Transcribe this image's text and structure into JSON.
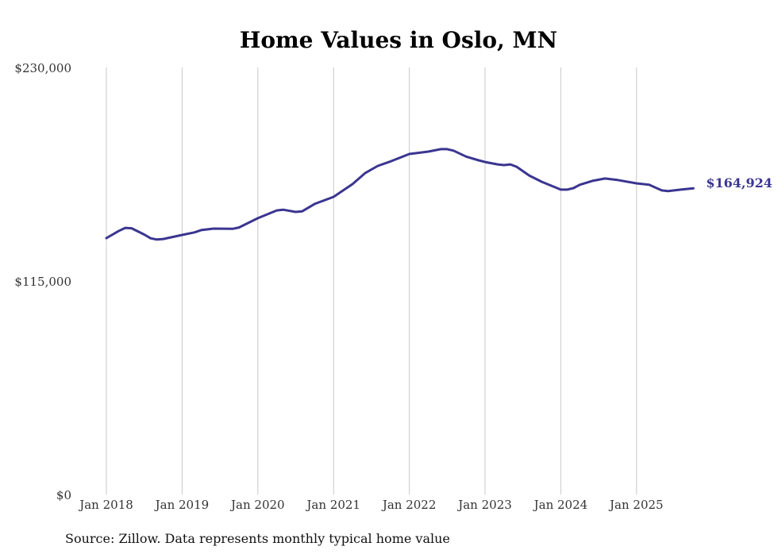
{
  "chart_data": {
    "type": "line",
    "title": "Home Values in Oslo, MN",
    "source": "Source: Zillow. Data represents monthly typical home value",
    "xlabel": "",
    "ylabel": "",
    "ylim": [
      0,
      230000
    ],
    "y_ticks": [
      0,
      115000,
      230000
    ],
    "y_tick_labels": [
      "$0",
      "$115,000",
      "$230,000"
    ],
    "x_ticks": [
      "2018-01",
      "2019-01",
      "2020-01",
      "2021-01",
      "2022-01",
      "2023-01",
      "2024-01",
      "2025-01"
    ],
    "x_tick_labels": [
      "Jan 2018",
      "Jan 2019",
      "Jan 2020",
      "Jan 2021",
      "Jan 2022",
      "Jan 2023",
      "Jan 2024",
      "Jan 2025"
    ],
    "grid": "vertical",
    "end_label": "$164,924",
    "colors": {
      "line": "#3b3590",
      "grid": "#c8c8c8",
      "text": "#333333"
    },
    "series": [
      {
        "name": "Typical home value",
        "points": [
          [
            "2018-01",
            138100
          ],
          [
            "2018-03",
            142000
          ],
          [
            "2018-04",
            143600
          ],
          [
            "2018-05",
            143400
          ],
          [
            "2018-07",
            140000
          ],
          [
            "2018-08",
            138000
          ],
          [
            "2018-09",
            137300
          ],
          [
            "2018-10",
            137600
          ],
          [
            "2019-01",
            139800
          ],
          [
            "2019-03",
            141200
          ],
          [
            "2019-04",
            142400
          ],
          [
            "2019-06",
            143200
          ],
          [
            "2019-09",
            143100
          ],
          [
            "2019-10",
            143800
          ],
          [
            "2020-01",
            148800
          ],
          [
            "2020-04",
            153000
          ],
          [
            "2020-05",
            153400
          ],
          [
            "2020-07",
            152200
          ],
          [
            "2020-08",
            152500
          ],
          [
            "2020-10",
            156500
          ],
          [
            "2021-01",
            160300
          ],
          [
            "2021-04",
            167200
          ],
          [
            "2021-06",
            173100
          ],
          [
            "2021-08",
            177000
          ],
          [
            "2021-10",
            179400
          ],
          [
            "2022-01",
            183400
          ],
          [
            "2022-04",
            184700
          ],
          [
            "2022-06",
            186000
          ],
          [
            "2022-07",
            186000
          ],
          [
            "2022-08",
            185200
          ],
          [
            "2022-10",
            182000
          ],
          [
            "2022-12",
            180000
          ],
          [
            "2023-01",
            179100
          ],
          [
            "2023-03",
            177800
          ],
          [
            "2023-04",
            177400
          ],
          [
            "2023-05",
            177800
          ],
          [
            "2023-06",
            176500
          ],
          [
            "2023-08",
            171800
          ],
          [
            "2023-10",
            168400
          ],
          [
            "2024-01",
            164200
          ],
          [
            "2024-02",
            164200
          ],
          [
            "2024-03",
            165000
          ],
          [
            "2024-04",
            166800
          ],
          [
            "2024-06",
            168900
          ],
          [
            "2024-08",
            170200
          ],
          [
            "2024-10",
            169400
          ],
          [
            "2025-01",
            167600
          ],
          [
            "2025-03",
            166800
          ],
          [
            "2025-05",
            163800
          ],
          [
            "2025-06",
            163400
          ],
          [
            "2025-08",
            164200
          ],
          [
            "2025-10",
            164924
          ]
        ]
      }
    ]
  }
}
